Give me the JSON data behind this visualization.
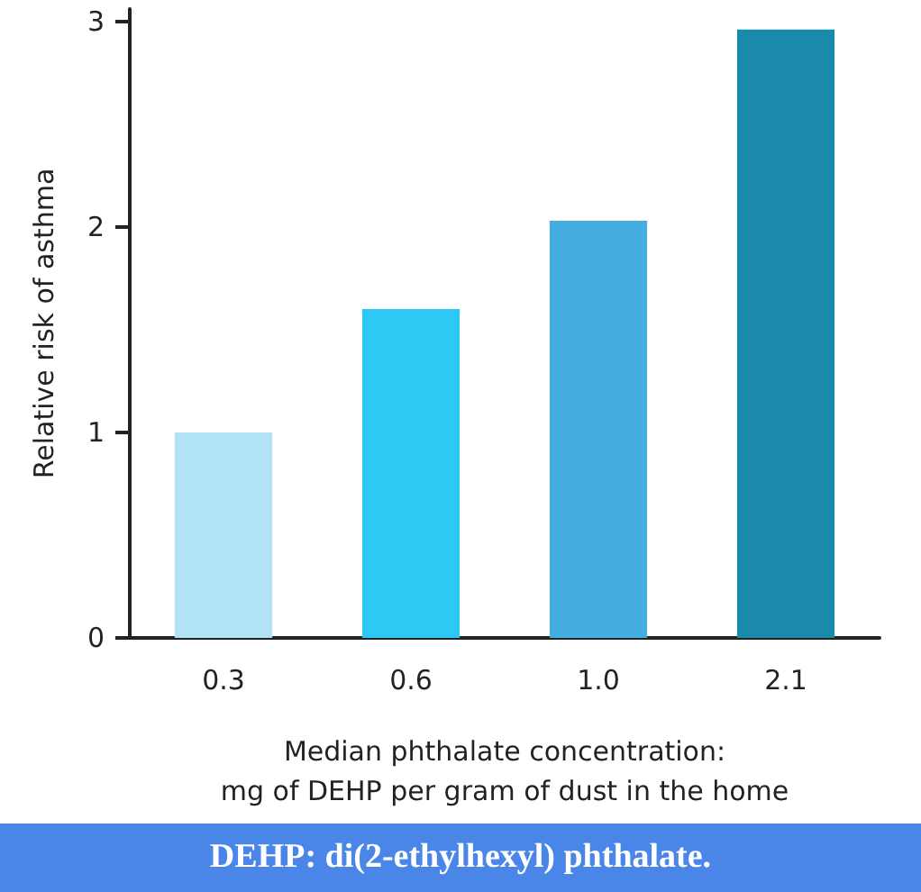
{
  "chart_data": {
    "type": "bar",
    "categories": [
      "0.3",
      "0.6",
      "1.0",
      "2.1"
    ],
    "values": [
      1.0,
      1.6,
      2.03,
      2.96
    ],
    "colors": [
      "#b3e3f7",
      "#2ec8f5",
      "#45aee0",
      "#1b89aa"
    ],
    "xlabel": "Median phthalate concentration:\nmg of DEHP per gram of dust in the home",
    "ylabel": "Relative risk of asthma",
    "ylim": [
      0,
      3.06
    ],
    "yticks": [
      0,
      1,
      2,
      3
    ],
    "grid": false,
    "annotations": [
      "DEHP: di(2-ethylhexyl) phthalate."
    ]
  }
}
